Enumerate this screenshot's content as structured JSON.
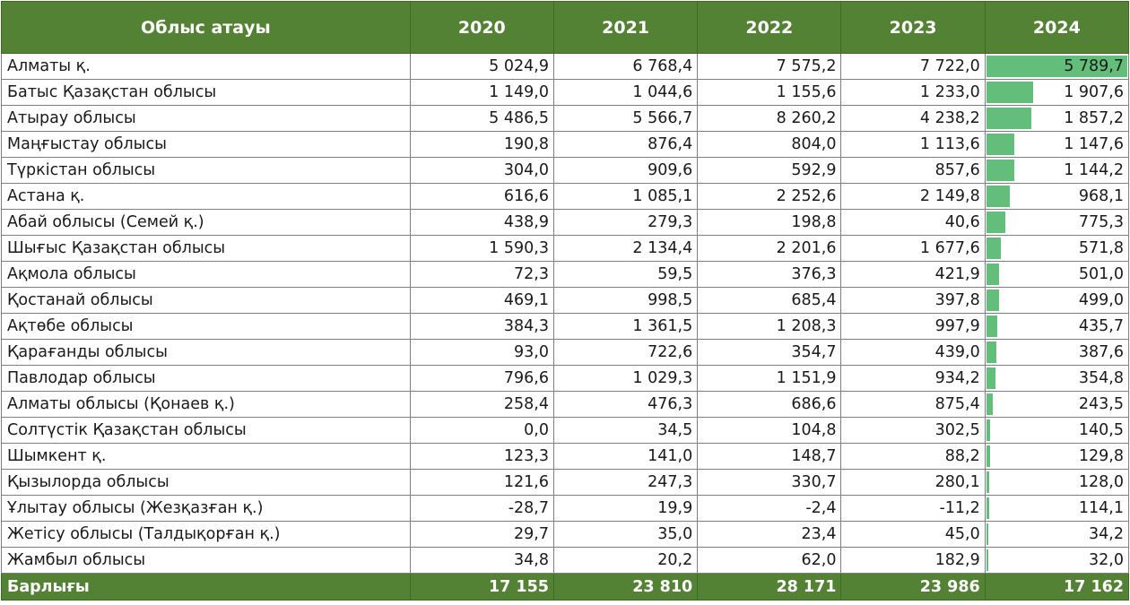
{
  "header": {
    "name_col": "Облыс атауы",
    "years": [
      "2020",
      "2021",
      "2022",
      "2023",
      "2024"
    ]
  },
  "rows": [
    {
      "name": "Алматы қ.",
      "v2020": "5 024,9",
      "v2021": "6 768,4",
      "v2022": "7 575,2",
      "v2023": "7 722,0",
      "v2024": "5 789,7",
      "n2024": 5789.7
    },
    {
      "name": "Батыс Қазақстан облысы",
      "v2020": "1 149,0",
      "v2021": "1 044,6",
      "v2022": "1 155,6",
      "v2023": "1 233,0",
      "v2024": "1 907,6",
      "n2024": 1907.6
    },
    {
      "name": "Атырау облысы",
      "v2020": "5 486,5",
      "v2021": "5 566,7",
      "v2022": "8 260,2",
      "v2023": "4 238,2",
      "v2024": "1 857,2",
      "n2024": 1857.2
    },
    {
      "name": "Маңғыстау облысы",
      "v2020": "190,8",
      "v2021": "876,4",
      "v2022": "804,0",
      "v2023": "1 113,6",
      "v2024": "1 147,6",
      "n2024": 1147.6
    },
    {
      "name": "Түркістан облысы",
      "v2020": "304,0",
      "v2021": "909,6",
      "v2022": "592,9",
      "v2023": "857,6",
      "v2024": "1 144,2",
      "n2024": 1144.2
    },
    {
      "name": "Астана қ.",
      "v2020": "616,6",
      "v2021": "1 085,1",
      "v2022": "2 252,6",
      "v2023": "2 149,8",
      "v2024": "968,1",
      "n2024": 968.1
    },
    {
      "name": "Абай облысы (Семей қ.)",
      "v2020": "438,9",
      "v2021": "279,3",
      "v2022": "198,8",
      "v2023": "40,6",
      "v2024": "775,3",
      "n2024": 775.3
    },
    {
      "name": "Шығыс Қазақстан облысы",
      "v2020": "1 590,3",
      "v2021": "2 134,4",
      "v2022": "2 201,6",
      "v2023": "1 677,6",
      "v2024": "571,8",
      "n2024": 571.8
    },
    {
      "name": "Ақмола облысы",
      "v2020": "72,3",
      "v2021": "59,5",
      "v2022": "376,3",
      "v2023": "421,9",
      "v2024": "501,0",
      "n2024": 501.0
    },
    {
      "name": "Қостанай облысы",
      "v2020": "469,1",
      "v2021": "998,5",
      "v2022": "685,4",
      "v2023": "397,8",
      "v2024": "499,0",
      "n2024": 499.0
    },
    {
      "name": "Ақтөбе облысы",
      "v2020": "384,3",
      "v2021": "1 361,5",
      "v2022": "1 208,3",
      "v2023": "997,9",
      "v2024": "435,7",
      "n2024": 435.7
    },
    {
      "name": "Қарағанды облысы",
      "v2020": "93,0",
      "v2021": "722,6",
      "v2022": "354,7",
      "v2023": "439,0",
      "v2024": "387,6",
      "n2024": 387.6
    },
    {
      "name": "Павлодар облысы",
      "v2020": "796,6",
      "v2021": "1 029,3",
      "v2022": "1 151,9",
      "v2023": "934,2",
      "v2024": "354,8",
      "n2024": 354.8
    },
    {
      "name": "Алматы облысы (Қонаев қ.)",
      "v2020": "258,4",
      "v2021": "476,3",
      "v2022": "686,6",
      "v2023": "875,4",
      "v2024": "243,5",
      "n2024": 243.5
    },
    {
      "name": "Солтүстік Қазақстан облысы",
      "v2020": "0,0",
      "v2021": "34,5",
      "v2022": "104,8",
      "v2023": "302,5",
      "v2024": "140,5",
      "n2024": 140.5
    },
    {
      "name": "Шымкент қ.",
      "v2020": "123,3",
      "v2021": "141,0",
      "v2022": "148,7",
      "v2023": "88,2",
      "v2024": "129,8",
      "n2024": 129.8
    },
    {
      "name": "Қызылорда облысы",
      "v2020": "121,6",
      "v2021": "247,3",
      "v2022": "330,7",
      "v2023": "280,1",
      "v2024": "128,0",
      "n2024": 128.0
    },
    {
      "name": "Ұлытау облысы (Жезқазған қ.)",
      "v2020": "-28,7",
      "v2021": "19,9",
      "v2022": "-2,4",
      "v2023": "-11,2",
      "v2024": "114,1",
      "n2024": 114.1
    },
    {
      "name": "Жетісу облысы (Талдықорған қ.)",
      "v2020": "29,7",
      "v2021": "35,0",
      "v2022": "23,4",
      "v2023": "45,0",
      "v2024": "34,2",
      "n2024": 34.2
    },
    {
      "name": "Жамбыл облысы",
      "v2020": "34,8",
      "v2021": "20,2",
      "v2022": "62,0",
      "v2023": "182,9",
      "v2024": "32,0",
      "n2024": 32.0
    }
  ],
  "total": {
    "name": "Барлығы",
    "v2020": "17 155",
    "v2021": "23 810",
    "v2022": "28 171",
    "v2023": "23 986",
    "v2024": "17 162"
  },
  "colors": {
    "header_bg": "#548235",
    "header_text": "#ffffff",
    "data_bar": "#63be7b"
  }
}
